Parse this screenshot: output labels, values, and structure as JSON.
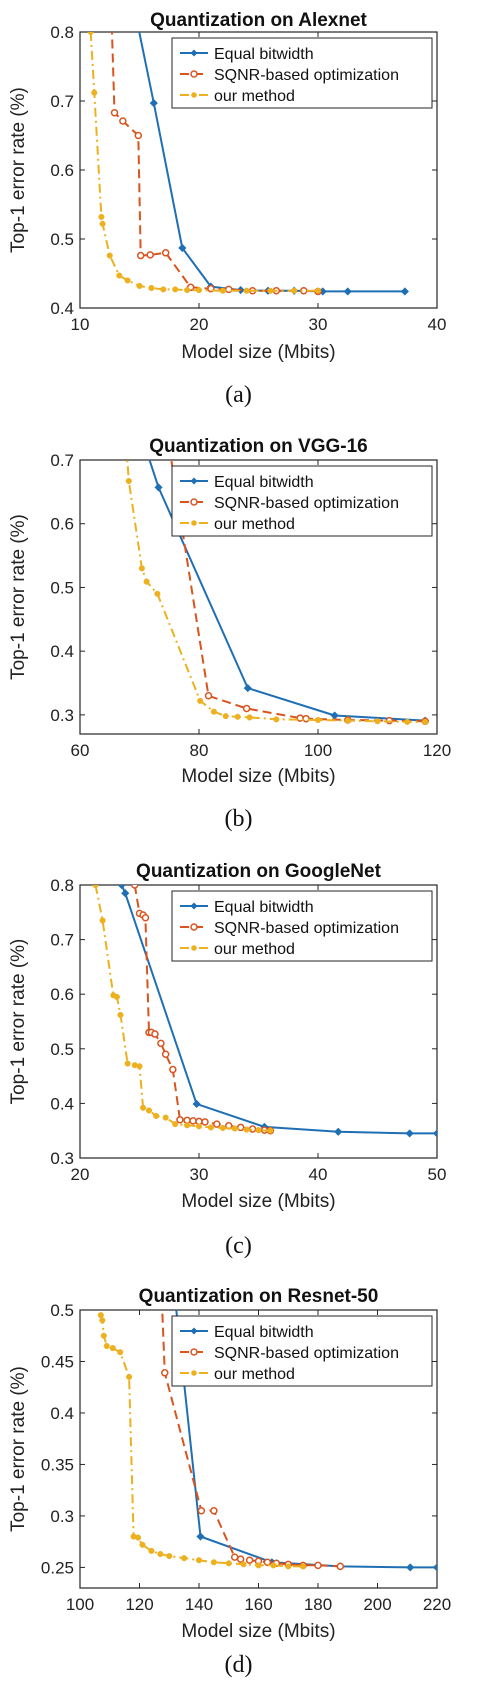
{
  "chart_data": [
    {
      "type": "line",
      "title": "Quantization on Alexnet",
      "xlabel": "Model size (Mbits)",
      "ylabel": "Top-1 error rate (%)",
      "xlim": [
        10,
        40
      ],
      "ylim": [
        0.4,
        0.8
      ],
      "xticks": [
        10,
        20,
        30,
        40
      ],
      "yticks": [
        0.4,
        0.5,
        0.6,
        0.7,
        0.8
      ],
      "legend_position": "top-right",
      "caption": "(a)",
      "series": [
        {
          "name": "Equal bitwidth",
          "color": "#1f6fb4",
          "dash": "solid",
          "marker": "diamond",
          "x": [
            14.5,
            16.2,
            18.6,
            21.0,
            23.5,
            25.8,
            28.0,
            30.4,
            32.5,
            37.3
          ],
          "y": [
            0.84,
            0.697,
            0.487,
            0.431,
            0.426,
            0.425,
            0.425,
            0.424,
            0.424,
            0.424
          ]
        },
        {
          "name": "SQNR-based optimization",
          "color": "#d9541e",
          "dash": "dashed",
          "marker": "circle-open",
          "x": [
            12.6,
            12.9,
            13.6,
            14.9,
            15.1,
            15.9,
            17.2,
            19.3,
            21.0,
            22.5,
            24.5,
            26.5,
            28.8,
            30.0
          ],
          "y": [
            0.85,
            0.683,
            0.671,
            0.65,
            0.476,
            0.477,
            0.48,
            0.43,
            0.428,
            0.427,
            0.425,
            0.425,
            0.425,
            0.424
          ]
        },
        {
          "name": "our method",
          "color": "#edb120",
          "dash": "dashdot",
          "marker": "dot",
          "x": [
            10.9,
            11.2,
            11.8,
            11.9,
            12.5,
            13.3,
            14.0,
            15.0,
            16.0,
            17.0,
            18.0,
            19.0,
            20.0,
            22.0,
            24.0,
            26.0,
            28.0,
            30.0
          ],
          "y": [
            0.8,
            0.712,
            0.532,
            0.522,
            0.476,
            0.447,
            0.44,
            0.432,
            0.429,
            0.427,
            0.427,
            0.426,
            0.426,
            0.425,
            0.425,
            0.425,
            0.425,
            0.425
          ]
        }
      ]
    },
    {
      "type": "line",
      "title": "Quantization on VGG-16",
      "xlabel": "Model size (Mbits)",
      "ylabel": "Top-1 error rate (%)",
      "xlim": [
        60,
        120
      ],
      "ylim": [
        0.27,
        0.7
      ],
      "xticks": [
        60,
        80,
        100,
        120
      ],
      "yticks": [
        0.3,
        0.4,
        0.5,
        0.6,
        0.7
      ],
      "legend_position": "top-right",
      "caption": "(b)",
      "series": [
        {
          "name": "Equal bitwidth",
          "color": "#1f6fb4",
          "dash": "solid",
          "marker": "diamond",
          "x": [
            71.0,
            73.2,
            88.2,
            102.8,
            118.0
          ],
          "y": [
            0.72,
            0.657,
            0.342,
            0.299,
            0.291
          ]
        },
        {
          "name": "SQNR-based optimization",
          "color": "#d9541e",
          "dash": "dashed",
          "marker": "circle-open",
          "x": [
            75.0,
            81.6,
            88.0,
            97.0,
            98.0,
            105.0,
            112.0,
            118.0
          ],
          "y": [
            0.72,
            0.33,
            0.31,
            0.295,
            0.294,
            0.292,
            0.291,
            0.29
          ]
        },
        {
          "name": "our method",
          "color": "#edb120",
          "dash": "dashdot",
          "marker": "dot",
          "x": [
            67.8,
            68.2,
            70.4,
            71.2,
            73.0,
            80.2,
            82.5,
            84.5,
            86.5,
            88.5,
            93.0,
            100.0,
            105.0,
            110.0,
            115.0,
            118.0
          ],
          "y": [
            0.72,
            0.667,
            0.53,
            0.509,
            0.49,
            0.322,
            0.305,
            0.298,
            0.297,
            0.296,
            0.293,
            0.292,
            0.291,
            0.29,
            0.289,
            0.289
          ]
        }
      ]
    },
    {
      "type": "line",
      "title": "Quantization on GoogleNet",
      "xlabel": "Model size (Mbits)",
      "ylabel": "Top-1 error rate (%)",
      "xlim": [
        20,
        50
      ],
      "ylim": [
        0.3,
        0.8
      ],
      "xticks": [
        20,
        30,
        40,
        50
      ],
      "yticks": [
        0.3,
        0.4,
        0.5,
        0.6,
        0.7,
        0.8
      ],
      "legend_position": "top-right",
      "caption": "(c)",
      "series": [
        {
          "name": "Equal bitwidth",
          "color": "#1f6fb4",
          "dash": "solid",
          "marker": "diamond",
          "x": [
            23.5,
            23.8,
            29.8,
            35.5,
            41.7,
            47.7,
            50.0
          ],
          "y": [
            0.8,
            0.785,
            0.399,
            0.357,
            0.348,
            0.345,
            0.345
          ]
        },
        {
          "name": "SQNR-based optimization",
          "color": "#d9541e",
          "dash": "dashed",
          "marker": "circle-open",
          "x": [
            24.6,
            25.0,
            25.3,
            25.5,
            25.8,
            26.0,
            26.3,
            26.8,
            27.2,
            27.8,
            28.4,
            29.0,
            29.5,
            30.0,
            30.5,
            31.5,
            32.5,
            33.5,
            34.5,
            35.5,
            36.0
          ],
          "y": [
            0.8,
            0.748,
            0.745,
            0.74,
            0.53,
            0.53,
            0.527,
            0.51,
            0.49,
            0.462,
            0.37,
            0.369,
            0.368,
            0.367,
            0.366,
            0.362,
            0.359,
            0.356,
            0.353,
            0.351,
            0.35
          ]
        },
        {
          "name": "our method",
          "color": "#edb120",
          "dash": "dashdot",
          "marker": "dot",
          "x": [
            21.3,
            21.9,
            22.8,
            23.1,
            23.4,
            24.0,
            24.6,
            25.0,
            25.3,
            25.8,
            26.4,
            27.2,
            28.0,
            29.0,
            30.0,
            31.0,
            32.0,
            33.0,
            34.0,
            35.0,
            36.0
          ],
          "y": [
            0.8,
            0.735,
            0.598,
            0.595,
            0.562,
            0.473,
            0.47,
            0.468,
            0.392,
            0.387,
            0.377,
            0.374,
            0.362,
            0.36,
            0.358,
            0.356,
            0.355,
            0.354,
            0.352,
            0.351,
            0.35
          ]
        }
      ]
    },
    {
      "type": "line",
      "title": "Quantization on Resnet-50",
      "xlabel": "Model size (Mbits)",
      "ylabel": "Top-1 error rate (%)",
      "xlim": [
        100,
        220
      ],
      "ylim": [
        0.23,
        0.5
      ],
      "xticks": [
        100,
        120,
        140,
        160,
        180,
        200,
        220
      ],
      "yticks": [
        0.25,
        0.3,
        0.35,
        0.4,
        0.45,
        0.5
      ],
      "legend_position": "top-right",
      "caption": "(d)",
      "series": [
        {
          "name": "Equal bitwidth",
          "color": "#1f6fb4",
          "dash": "solid",
          "marker": "diamond",
          "x": [
            132.0,
            140.5,
            164.5,
            187.5,
            211.0,
            220.0
          ],
          "y": [
            0.51,
            0.28,
            0.255,
            0.251,
            0.25,
            0.25
          ]
        },
        {
          "name": "SQNR-based optimization",
          "color": "#d9541e",
          "dash": "dashed",
          "marker": "circle-open",
          "x": [
            127.5,
            128.5,
            140.8,
            145.0,
            152.0,
            154.0,
            157.0,
            160.0,
            163.0,
            166.0,
            170.0,
            175.0,
            180.0,
            187.5
          ],
          "y": [
            0.51,
            0.439,
            0.305,
            0.305,
            0.26,
            0.258,
            0.257,
            0.256,
            0.255,
            0.254,
            0.253,
            0.252,
            0.252,
            0.251
          ]
        },
        {
          "name": "our method",
          "color": "#edb120",
          "dash": "dashdot",
          "marker": "dot",
          "x": [
            107.0,
            107.5,
            108.0,
            109.0,
            111.0,
            113.5,
            116.5,
            118.0,
            119.5,
            121.0,
            124.0,
            127.0,
            130.0,
            135.0,
            140.0,
            145.0,
            150.0,
            155.0,
            160.0,
            165.0,
            170.0,
            175.0
          ],
          "y": [
            0.495,
            0.49,
            0.475,
            0.465,
            0.463,
            0.459,
            0.435,
            0.28,
            0.279,
            0.272,
            0.266,
            0.263,
            0.261,
            0.259,
            0.257,
            0.255,
            0.254,
            0.253,
            0.252,
            0.252,
            0.251,
            0.251
          ]
        }
      ]
    }
  ]
}
